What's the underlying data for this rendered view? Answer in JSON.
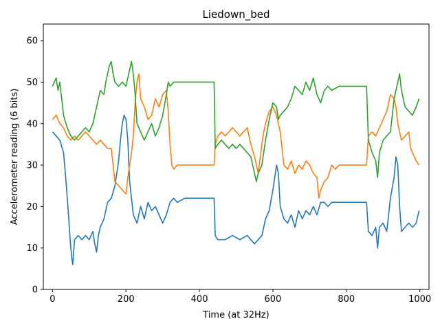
{
  "chart_data": {
    "type": "line",
    "title": "Liedown_bed",
    "xlabel": "Time (at 32Hz)",
    "ylabel": "Accelerometer reading (6 bits)",
    "xlim": [
      -25,
      1025
    ],
    "ylim": [
      0,
      64
    ],
    "xticks": [
      0,
      200,
      400,
      600,
      800,
      1000
    ],
    "yticks": [
      0,
      10,
      20,
      30,
      40,
      50,
      60
    ],
    "grid": false,
    "series": [
      {
        "color": "#1f77b4",
        "points": [
          [
            0,
            38
          ],
          [
            10,
            37
          ],
          [
            20,
            36
          ],
          [
            30,
            33
          ],
          [
            35,
            28
          ],
          [
            42,
            20
          ],
          [
            48,
            12
          ],
          [
            52,
            8
          ],
          [
            55,
            6
          ],
          [
            60,
            12
          ],
          [
            70,
            13
          ],
          [
            80,
            12
          ],
          [
            90,
            13
          ],
          [
            100,
            12
          ],
          [
            110,
            14
          ],
          [
            115,
            11
          ],
          [
            120,
            9
          ],
          [
            125,
            13
          ],
          [
            130,
            15
          ],
          [
            140,
            17
          ],
          [
            150,
            21
          ],
          [
            160,
            22
          ],
          [
            170,
            25
          ],
          [
            180,
            31
          ],
          [
            185,
            36
          ],
          [
            190,
            40
          ],
          [
            195,
            42
          ],
          [
            200,
            41
          ],
          [
            205,
            36
          ],
          [
            210,
            26
          ],
          [
            215,
            22
          ],
          [
            220,
            18
          ],
          [
            230,
            16
          ],
          [
            240,
            20
          ],
          [
            250,
            17
          ],
          [
            260,
            21
          ],
          [
            270,
            19
          ],
          [
            280,
            20
          ],
          [
            290,
            18
          ],
          [
            300,
            16
          ],
          [
            310,
            18
          ],
          [
            320,
            21
          ],
          [
            330,
            22
          ],
          [
            340,
            21
          ],
          [
            360,
            22
          ],
          [
            380,
            22
          ],
          [
            400,
            22
          ],
          [
            420,
            22
          ],
          [
            440,
            22
          ],
          [
            443,
            13
          ],
          [
            450,
            12
          ],
          [
            470,
            12
          ],
          [
            490,
            13
          ],
          [
            510,
            12
          ],
          [
            530,
            13
          ],
          [
            550,
            11
          ],
          [
            560,
            12
          ],
          [
            570,
            13
          ],
          [
            580,
            17
          ],
          [
            590,
            19
          ],
          [
            600,
            24
          ],
          [
            610,
            30
          ],
          [
            615,
            28
          ],
          [
            620,
            20
          ],
          [
            630,
            17
          ],
          [
            640,
            16
          ],
          [
            650,
            18
          ],
          [
            660,
            15
          ],
          [
            670,
            19
          ],
          [
            680,
            17
          ],
          [
            690,
            19
          ],
          [
            700,
            18
          ],
          [
            710,
            20
          ],
          [
            720,
            18
          ],
          [
            730,
            21
          ],
          [
            740,
            21
          ],
          [
            750,
            20
          ],
          [
            760,
            21
          ],
          [
            780,
            21
          ],
          [
            800,
            21
          ],
          [
            820,
            21
          ],
          [
            840,
            21
          ],
          [
            855,
            21
          ],
          [
            860,
            14
          ],
          [
            870,
            13
          ],
          [
            880,
            15
          ],
          [
            885,
            10
          ],
          [
            890,
            15
          ],
          [
            900,
            16
          ],
          [
            910,
            14
          ],
          [
            915,
            18
          ],
          [
            920,
            22
          ],
          [
            930,
            27
          ],
          [
            935,
            32
          ],
          [
            940,
            30
          ],
          [
            945,
            20
          ],
          [
            950,
            14
          ],
          [
            960,
            15
          ],
          [
            970,
            16
          ],
          [
            980,
            15
          ],
          [
            990,
            16
          ],
          [
            998,
            19
          ]
        ]
      },
      {
        "color": "#ff7f0e",
        "points": [
          [
            0,
            41
          ],
          [
            10,
            42
          ],
          [
            20,
            40
          ],
          [
            30,
            39
          ],
          [
            40,
            37
          ],
          [
            50,
            36
          ],
          [
            60,
            37
          ],
          [
            70,
            36
          ],
          [
            80,
            37
          ],
          [
            90,
            38
          ],
          [
            100,
            37
          ],
          [
            110,
            36
          ],
          [
            120,
            35
          ],
          [
            130,
            36
          ],
          [
            140,
            35
          ],
          [
            150,
            34
          ],
          [
            160,
            34
          ],
          [
            165,
            30
          ],
          [
            170,
            26
          ],
          [
            180,
            25
          ],
          [
            190,
            24
          ],
          [
            200,
            23
          ],
          [
            205,
            27
          ],
          [
            210,
            30
          ],
          [
            215,
            33
          ],
          [
            220,
            37
          ],
          [
            225,
            45
          ],
          [
            230,
            50
          ],
          [
            235,
            52
          ],
          [
            240,
            46
          ],
          [
            250,
            44
          ],
          [
            260,
            41
          ],
          [
            270,
            42
          ],
          [
            280,
            46
          ],
          [
            290,
            44
          ],
          [
            300,
            47
          ],
          [
            310,
            48
          ],
          [
            315,
            43
          ],
          [
            320,
            35
          ],
          [
            325,
            30
          ],
          [
            330,
            29
          ],
          [
            340,
            30
          ],
          [
            360,
            30
          ],
          [
            380,
            30
          ],
          [
            400,
            30
          ],
          [
            420,
            30
          ],
          [
            440,
            30
          ],
          [
            443,
            35
          ],
          [
            450,
            37
          ],
          [
            460,
            38
          ],
          [
            470,
            37
          ],
          [
            480,
            38
          ],
          [
            490,
            39
          ],
          [
            500,
            38
          ],
          [
            510,
            37
          ],
          [
            520,
            38
          ],
          [
            530,
            39
          ],
          [
            540,
            35
          ],
          [
            550,
            32
          ],
          [
            555,
            30
          ],
          [
            560,
            28
          ],
          [
            570,
            35
          ],
          [
            575,
            38
          ],
          [
            580,
            40
          ],
          [
            590,
            43
          ],
          [
            600,
            44
          ],
          [
            610,
            42
          ],
          [
            620,
            38
          ],
          [
            625,
            34
          ],
          [
            630,
            30
          ],
          [
            640,
            29
          ],
          [
            650,
            31
          ],
          [
            660,
            28
          ],
          [
            670,
            30
          ],
          [
            680,
            29
          ],
          [
            690,
            31
          ],
          [
            700,
            30
          ],
          [
            710,
            28
          ],
          [
            720,
            27
          ],
          [
            725,
            22
          ],
          [
            730,
            24
          ],
          [
            740,
            26
          ],
          [
            750,
            27
          ],
          [
            760,
            30
          ],
          [
            770,
            29
          ],
          [
            780,
            30
          ],
          [
            800,
            30
          ],
          [
            820,
            30
          ],
          [
            840,
            30
          ],
          [
            855,
            30
          ],
          [
            860,
            37
          ],
          [
            870,
            38
          ],
          [
            880,
            37
          ],
          [
            890,
            39
          ],
          [
            900,
            41
          ],
          [
            910,
            43
          ],
          [
            915,
            45
          ],
          [
            920,
            47
          ],
          [
            930,
            46
          ],
          [
            935,
            44
          ],
          [
            940,
            40
          ],
          [
            950,
            36
          ],
          [
            960,
            37
          ],
          [
            970,
            38
          ],
          [
            975,
            34
          ],
          [
            980,
            33
          ],
          [
            990,
            31
          ],
          [
            998,
            30
          ]
        ]
      },
      {
        "color": "#2ca02c",
        "points": [
          [
            0,
            49
          ],
          [
            5,
            50
          ],
          [
            10,
            51
          ],
          [
            15,
            48
          ],
          [
            20,
            50
          ],
          [
            25,
            46
          ],
          [
            30,
            42
          ],
          [
            40,
            39
          ],
          [
            50,
            37
          ],
          [
            60,
            36
          ],
          [
            70,
            37
          ],
          [
            80,
            38
          ],
          [
            90,
            39
          ],
          [
            100,
            38
          ],
          [
            110,
            40
          ],
          [
            120,
            44
          ],
          [
            130,
            48
          ],
          [
            140,
            47
          ],
          [
            145,
            50
          ],
          [
            150,
            52
          ],
          [
            155,
            54
          ],
          [
            160,
            55
          ],
          [
            165,
            52
          ],
          [
            170,
            50
          ],
          [
            180,
            49
          ],
          [
            190,
            50
          ],
          [
            200,
            49
          ],
          [
            210,
            53
          ],
          [
            215,
            55
          ],
          [
            220,
            52
          ],
          [
            225,
            47
          ],
          [
            230,
            40
          ],
          [
            240,
            38
          ],
          [
            250,
            36
          ],
          [
            260,
            38
          ],
          [
            270,
            40
          ],
          [
            280,
            37
          ],
          [
            290,
            39
          ],
          [
            300,
            42
          ],
          [
            310,
            47
          ],
          [
            315,
            50
          ],
          [
            320,
            49
          ],
          [
            330,
            50
          ],
          [
            350,
            50
          ],
          [
            370,
            50
          ],
          [
            390,
            50
          ],
          [
            410,
            50
          ],
          [
            430,
            50
          ],
          [
            440,
            50
          ],
          [
            443,
            34
          ],
          [
            450,
            35
          ],
          [
            460,
            36
          ],
          [
            470,
            35
          ],
          [
            480,
            34
          ],
          [
            490,
            35
          ],
          [
            500,
            34
          ],
          [
            510,
            35
          ],
          [
            520,
            34
          ],
          [
            530,
            33
          ],
          [
            540,
            32
          ],
          [
            550,
            28
          ],
          [
            555,
            26
          ],
          [
            560,
            28
          ],
          [
            570,
            30
          ],
          [
            580,
            36
          ],
          [
            590,
            41
          ],
          [
            600,
            45
          ],
          [
            610,
            44
          ],
          [
            615,
            41
          ],
          [
            620,
            42
          ],
          [
            630,
            43
          ],
          [
            640,
            44
          ],
          [
            650,
            46
          ],
          [
            660,
            49
          ],
          [
            670,
            48
          ],
          [
            680,
            47
          ],
          [
            690,
            50
          ],
          [
            700,
            48
          ],
          [
            710,
            51
          ],
          [
            720,
            47
          ],
          [
            730,
            45
          ],
          [
            740,
            48
          ],
          [
            750,
            49
          ],
          [
            760,
            48
          ],
          [
            780,
            49
          ],
          [
            800,
            49
          ],
          [
            820,
            49
          ],
          [
            840,
            49
          ],
          [
            855,
            49
          ],
          [
            860,
            36
          ],
          [
            870,
            33
          ],
          [
            880,
            31
          ],
          [
            885,
            27
          ],
          [
            890,
            33
          ],
          [
            900,
            36
          ],
          [
            910,
            37
          ],
          [
            920,
            38
          ],
          [
            930,
            46
          ],
          [
            940,
            50
          ],
          [
            945,
            52
          ],
          [
            950,
            48
          ],
          [
            960,
            44
          ],
          [
            970,
            43
          ],
          [
            980,
            42
          ],
          [
            990,
            44
          ],
          [
            998,
            46
          ]
        ]
      }
    ]
  }
}
